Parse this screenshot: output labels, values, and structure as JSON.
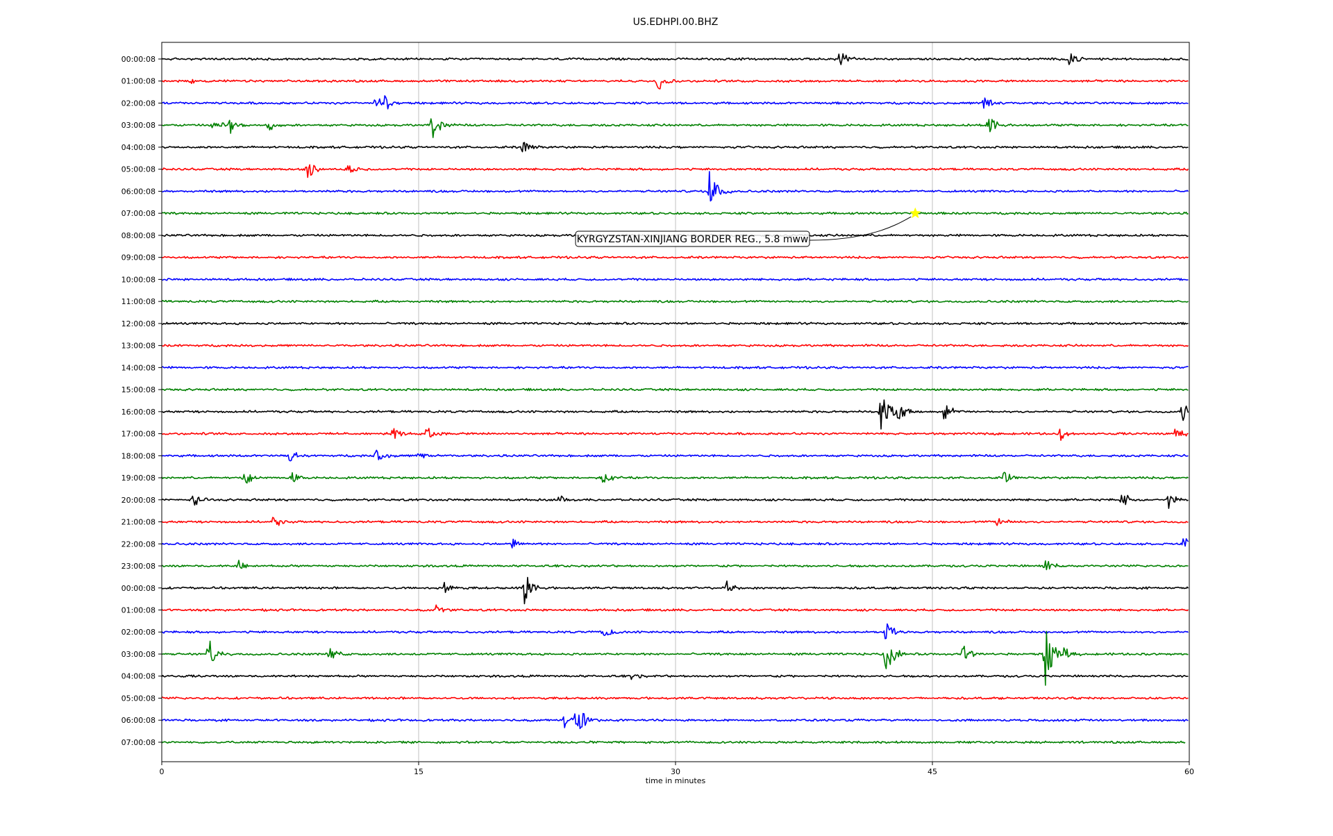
{
  "chart_data": {
    "type": "line",
    "title": "US.EDHPI.00.BHZ",
    "xlabel": "time in minutes",
    "ylabel": "",
    "xlim": [
      0,
      60
    ],
    "x_ticks": [
      0,
      15,
      30,
      45,
      60
    ],
    "x_tick_labels": [
      "0",
      "15",
      "30",
      "45",
      "60"
    ],
    "grid": "vertical lines at x ticks",
    "trace_colors": [
      "#000000",
      "#ff0000",
      "#0000ff",
      "#008000"
    ],
    "row_labels": [
      "00:00:08",
      "01:00:08",
      "02:00:08",
      "03:00:08",
      "04:00:08",
      "05:00:08",
      "06:00:08",
      "07:00:08",
      "08:00:08",
      "09:00:08",
      "10:00:08",
      "11:00:08",
      "12:00:08",
      "13:00:08",
      "14:00:08",
      "15:00:08",
      "16:00:08",
      "17:00:08",
      "18:00:08",
      "19:00:08",
      "20:00:08",
      "21:00:08",
      "22:00:08",
      "23:00:08",
      "00:00:08",
      "01:00:08",
      "02:00:08",
      "03:00:08",
      "04:00:08",
      "05:00:08",
      "06:00:08",
      "07:00:08"
    ],
    "last_row_end_minute": 59.8,
    "bursts": [
      {
        "row": 0,
        "minute": 39.6,
        "amp": 0.45
      },
      {
        "row": 0,
        "minute": 53.0,
        "amp": 0.35
      },
      {
        "row": 1,
        "minute": 29.0,
        "amp": 0.45
      },
      {
        "row": 1,
        "minute": 1.6,
        "amp": 0.2
      },
      {
        "row": 2,
        "minute": 12.5,
        "amp": 0.35
      },
      {
        "row": 2,
        "minute": 13.0,
        "amp": 0.4
      },
      {
        "row": 2,
        "minute": 48.0,
        "amp": 0.45
      },
      {
        "row": 3,
        "minute": 3.0,
        "amp": 0.45
      },
      {
        "row": 3,
        "minute": 4.0,
        "amp": 0.35
      },
      {
        "row": 3,
        "minute": 6.2,
        "amp": 0.35
      },
      {
        "row": 3,
        "minute": 15.8,
        "amp": 0.7
      },
      {
        "row": 3,
        "minute": 48.3,
        "amp": 0.6
      },
      {
        "row": 4,
        "minute": 21.0,
        "amp": 0.35
      },
      {
        "row": 5,
        "minute": 8.5,
        "amp": 0.5
      },
      {
        "row": 5,
        "minute": 10.8,
        "amp": 0.25
      },
      {
        "row": 6,
        "minute": 32.0,
        "amp": 1.2
      },
      {
        "row": 16,
        "minute": 42.0,
        "amp": 1.0
      },
      {
        "row": 16,
        "minute": 43.0,
        "amp": 0.4
      },
      {
        "row": 16,
        "minute": 45.7,
        "amp": 0.45
      },
      {
        "row": 16,
        "minute": 59.6,
        "amp": 0.5
      },
      {
        "row": 17,
        "minute": 13.5,
        "amp": 0.3
      },
      {
        "row": 17,
        "minute": 15.5,
        "amp": 0.35
      },
      {
        "row": 17,
        "minute": 52.5,
        "amp": 0.3
      },
      {
        "row": 17,
        "minute": 59.2,
        "amp": 0.35
      },
      {
        "row": 18,
        "minute": 7.5,
        "amp": 0.3
      },
      {
        "row": 18,
        "minute": 12.5,
        "amp": 0.35
      },
      {
        "row": 18,
        "minute": 15.0,
        "amp": 0.3
      },
      {
        "row": 19,
        "minute": 4.8,
        "amp": 0.4
      },
      {
        "row": 19,
        "minute": 7.5,
        "amp": 0.35
      },
      {
        "row": 19,
        "minute": 25.8,
        "amp": 0.35
      },
      {
        "row": 19,
        "minute": 49.2,
        "amp": 0.3
      },
      {
        "row": 20,
        "minute": 1.8,
        "amp": 0.3
      },
      {
        "row": 20,
        "minute": 23.2,
        "amp": 0.25
      },
      {
        "row": 20,
        "minute": 56.0,
        "amp": 0.45
      },
      {
        "row": 20,
        "minute": 58.8,
        "amp": 0.4
      },
      {
        "row": 21,
        "minute": 6.5,
        "amp": 0.3
      },
      {
        "row": 21,
        "minute": 48.8,
        "amp": 0.3
      },
      {
        "row": 22,
        "minute": 20.5,
        "amp": 0.25
      },
      {
        "row": 22,
        "minute": 59.7,
        "amp": 0.35
      },
      {
        "row": 23,
        "minute": 4.5,
        "amp": 0.25
      },
      {
        "row": 23,
        "minute": 51.6,
        "amp": 0.3
      },
      {
        "row": 24,
        "minute": 16.5,
        "amp": 0.25
      },
      {
        "row": 24,
        "minute": 21.2,
        "amp": 0.85
      },
      {
        "row": 24,
        "minute": 33.0,
        "amp": 0.35
      },
      {
        "row": 25,
        "minute": 16.0,
        "amp": 0.25
      },
      {
        "row": 26,
        "minute": 25.8,
        "amp": 0.35
      },
      {
        "row": 26,
        "minute": 42.3,
        "amp": 0.6
      },
      {
        "row": 27,
        "minute": 2.7,
        "amp": 0.8
      },
      {
        "row": 27,
        "minute": 9.8,
        "amp": 0.35
      },
      {
        "row": 27,
        "minute": 42.3,
        "amp": 1.0
      },
      {
        "row": 27,
        "minute": 46.8,
        "amp": 0.45
      },
      {
        "row": 27,
        "minute": 51.6,
        "amp": 1.6
      },
      {
        "row": 27,
        "minute": 52.6,
        "amp": 0.35
      },
      {
        "row": 28,
        "minute": 27.5,
        "amp": 0.3
      },
      {
        "row": 30,
        "minute": 24.2,
        "amp": 0.9
      },
      {
        "row": 30,
        "minute": 23.5,
        "amp": 0.35
      }
    ],
    "event": {
      "label": "KYRGYZSTAN-XINJIANG BORDER REG., 5.8 mww",
      "row": 7,
      "minute": 44.0,
      "marker": "star",
      "marker_color": "#ffff00"
    }
  }
}
